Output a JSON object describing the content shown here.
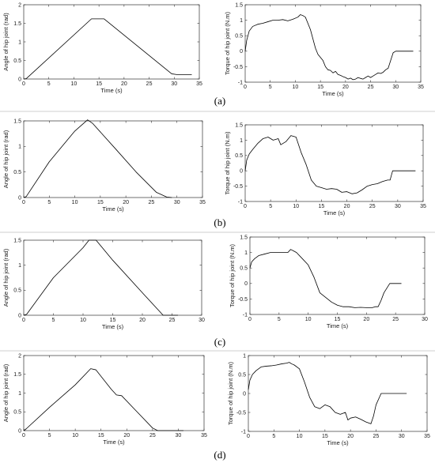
{
  "panels": [
    {
      "label": "(a)",
      "charts": [
        {
          "type": "line",
          "xlabel": "Time (s)",
          "ylabel": "Angle of hip joint (rad)",
          "xlim": [
            0,
            35
          ],
          "ylim": [
            0,
            2
          ],
          "xticks": [
            0,
            5,
            10,
            15,
            20,
            25,
            30,
            35
          ],
          "yticks": [
            0,
            0.5,
            1,
            1.5,
            2
          ],
          "ytick_labels": [
            "0",
            "0.5",
            "1",
            "1.5",
            "2"
          ],
          "series": [
            {
              "x": [
                0,
                0.5,
                13.5,
                16,
                29.5,
                30.5,
                33.5
              ],
              "y": [
                0,
                0.01,
                1.62,
                1.62,
                0.14,
                0.12,
                0.12
              ]
            }
          ]
        },
        {
          "type": "line",
          "xlabel": "Time (s)",
          "ylabel": "Torque of hip joint (N.m)",
          "xlim": [
            0,
            35
          ],
          "ylim": [
            -1,
            1.5
          ],
          "xticks": [
            0,
            5,
            10,
            15,
            20,
            25,
            30,
            35
          ],
          "yticks": [
            -1,
            -0.5,
            0,
            0.5,
            1,
            1.5
          ],
          "ytick_labels": [
            "-1",
            "-0.5",
            "0",
            "0.5",
            "1",
            "1.5"
          ],
          "series": [
            {
              "x": [
                0,
                0.3,
                0.8,
                1.5,
                2.5,
                3.5,
                4.5,
                5.5,
                6.5,
                7.5,
                8.5,
                9.5,
                10.5,
                11,
                11.5,
                12,
                12.5,
                13,
                13.5,
                14,
                14.5,
                15,
                15.5,
                16,
                16.5,
                17,
                17.5,
                18,
                18.5,
                19,
                19.5,
                20,
                20.5,
                21,
                21.5,
                22,
                22.5,
                23,
                23.5,
                24,
                24.5,
                25,
                25.5,
                26,
                26.5,
                27,
                27.5,
                28,
                28.5,
                29,
                29.5,
                30,
                33.5
              ],
              "y": [
                0,
                0.35,
                0.65,
                0.8,
                0.87,
                0.9,
                0.95,
                1.0,
                1.0,
                1.02,
                0.98,
                1.03,
                1.1,
                1.18,
                1.15,
                1.1,
                0.9,
                0.7,
                0.4,
                0.1,
                -0.1,
                -0.2,
                -0.3,
                -0.5,
                -0.6,
                -0.62,
                -0.7,
                -0.65,
                -0.75,
                -0.78,
                -0.82,
                -0.85,
                -0.9,
                -0.87,
                -0.92,
                -0.9,
                -0.85,
                -0.88,
                -0.9,
                -0.85,
                -0.8,
                -0.85,
                -0.8,
                -0.75,
                -0.7,
                -0.72,
                -0.68,
                -0.6,
                -0.55,
                -0.3,
                -0.05,
                0,
                0
              ]
            }
          ]
        }
      ]
    },
    {
      "label": "(b)",
      "charts": [
        {
          "type": "line",
          "xlabel": "Time (s)",
          "ylabel": "Angle of hip joint (rad)",
          "xlim": [
            0,
            35
          ],
          "ylim": [
            0,
            1.5
          ],
          "xticks": [
            0,
            5,
            10,
            15,
            20,
            25,
            30,
            35
          ],
          "yticks": [
            0,
            0.5,
            1,
            1.5
          ],
          "ytick_labels": [
            "0",
            "0.5",
            "1",
            "1.5"
          ],
          "series": [
            {
              "x": [
                0,
                0.5,
                5,
                10,
                12.5,
                13.5,
                18,
                22,
                26,
                28,
                29
              ],
              "y": [
                0,
                0.02,
                0.7,
                1.3,
                1.52,
                1.45,
                0.95,
                0.5,
                0.1,
                0.01,
                0
              ]
            }
          ]
        },
        {
          "type": "line",
          "xlabel": "Time (s)",
          "ylabel": "Torque of hip joint (N.m)",
          "xlim": [
            0,
            35
          ],
          "ylim": [
            -1,
            1.5
          ],
          "xticks": [
            0,
            5,
            10,
            15,
            20,
            25,
            30,
            35
          ],
          "yticks": [
            -1,
            -0.5,
            0,
            0.5,
            1,
            1.5
          ],
          "ytick_labels": [
            "-1",
            "-0.5",
            "0",
            "0.5",
            "1",
            "1.5"
          ],
          "series": [
            {
              "x": [
                0,
                0.3,
                0.8,
                1.5,
                2.5,
                3.5,
                4.5,
                5.5,
                6.5,
                7,
                8,
                9,
                10,
                11,
                12,
                13,
                14,
                15,
                16,
                17,
                18,
                19,
                20,
                21,
                22,
                23,
                24,
                25,
                26,
                27,
                28,
                28.5,
                29,
                33.5
              ],
              "y": [
                0,
                0.35,
                0.55,
                0.7,
                0.9,
                1.05,
                1.1,
                1.0,
                1.05,
                0.85,
                0.95,
                1.15,
                1.1,
                0.6,
                0.2,
                -0.3,
                -0.5,
                -0.55,
                -0.6,
                -0.58,
                -0.6,
                -0.7,
                -0.68,
                -0.75,
                -0.72,
                -0.62,
                -0.5,
                -0.45,
                -0.42,
                -0.35,
                -0.3,
                -0.3,
                0,
                0
              ]
            }
          ]
        }
      ]
    },
    {
      "label": "(c)",
      "charts": [
        {
          "type": "line",
          "xlabel": "Time (s)",
          "ylabel": "Angle of hip joint (rad)",
          "xlim": [
            0,
            30
          ],
          "ylim": [
            0,
            1.5
          ],
          "xticks": [
            0,
            5,
            10,
            15,
            20,
            25,
            30
          ],
          "yticks": [
            0,
            0.5,
            1,
            1.5
          ],
          "ytick_labels": [
            "0",
            "0.5",
            "1",
            "1.5"
          ],
          "series": [
            {
              "x": [
                0,
                0.5,
                5,
                10,
                11,
                12.2,
                15,
                20,
                23.5,
                24,
                26
              ],
              "y": [
                0,
                0.02,
                0.75,
                1.35,
                1.5,
                1.5,
                1.1,
                0.45,
                0,
                0,
                0
              ]
            }
          ]
        },
        {
          "type": "line",
          "xlabel": "Time (s)",
          "ylabel": "Torque of hip joint (N.m)",
          "xlim": [
            0,
            30
          ],
          "ylim": [
            -1,
            1.5
          ],
          "xticks": [
            0,
            5,
            10,
            15,
            20,
            25,
            30
          ],
          "yticks": [
            -1,
            -0.5,
            0,
            0.5,
            1,
            1.5
          ],
          "ytick_labels": [
            "-1",
            "-0.5",
            "0",
            "0.5",
            "1",
            "1.5"
          ],
          "series": [
            {
              "x": [
                0,
                0.3,
                0.8,
                1.5,
                2.5,
                3.5,
                4.5,
                5.5,
                6.5,
                7,
                7.5,
                8,
                9,
                10,
                11,
                12,
                13,
                14,
                15,
                16,
                17,
                18,
                19,
                20,
                21,
                21.5,
                22,
                22.5,
                23,
                24,
                26
              ],
              "y": [
                0.5,
                0.7,
                0.8,
                0.9,
                0.95,
                1.0,
                1.0,
                1.0,
                1.0,
                1.1,
                1.05,
                1.0,
                0.8,
                0.6,
                0.2,
                -0.3,
                -0.45,
                -0.6,
                -0.7,
                -0.75,
                -0.75,
                -0.78,
                -0.77,
                -0.78,
                -0.78,
                -0.75,
                -0.75,
                -0.55,
                -0.3,
                0,
                0
              ]
            }
          ]
        }
      ]
    },
    {
      "label": "(d)",
      "charts": [
        {
          "type": "line",
          "xlabel": "Time (s)",
          "ylabel": "Angle of hip joint (rad)",
          "xlim": [
            0,
            35
          ],
          "ylim": [
            0,
            2
          ],
          "xticks": [
            0,
            5,
            10,
            15,
            20,
            25,
            30,
            35
          ],
          "yticks": [
            0,
            0.5,
            1,
            1.5,
            2
          ],
          "ytick_labels": [
            "0",
            "0.5",
            "1",
            "1.5",
            "2"
          ],
          "series": [
            {
              "x": [
                0,
                0.5,
                5,
                10,
                13,
                14,
                17,
                18,
                19,
                22,
                25,
                26,
                31
              ],
              "y": [
                0,
                0.05,
                0.62,
                1.22,
                1.65,
                1.62,
                1.1,
                0.95,
                0.93,
                0.5,
                0.07,
                0,
                0
              ]
            }
          ]
        },
        {
          "type": "line",
          "xlabel": "Time (s)",
          "ylabel": "Torque of hip joint (N.m)",
          "xlim": [
            0,
            35
          ],
          "ylim": [
            -1,
            1
          ],
          "xticks": [
            0,
            5,
            10,
            15,
            20,
            25,
            30,
            35
          ],
          "yticks": [
            -1,
            -0.5,
            0,
            0.5,
            1
          ],
          "ytick_labels": [
            "-1",
            "-0.5",
            "0",
            "0.5",
            "1"
          ],
          "series": [
            {
              "x": [
                0,
                0.3,
                0.8,
                1.5,
                2.5,
                3.5,
                4.5,
                5.5,
                6.5,
                7.5,
                8,
                8.5,
                9,
                10,
                11,
                12,
                13,
                14,
                15,
                16,
                17,
                18,
                19,
                19.5,
                20,
                21,
                22,
                23,
                24,
                24.5,
                25,
                26,
                31
              ],
              "y": [
                0.1,
                0.35,
                0.5,
                0.6,
                0.7,
                0.72,
                0.73,
                0.75,
                0.78,
                0.8,
                0.82,
                0.78,
                0.75,
                0.65,
                0.3,
                -0.1,
                -0.35,
                -0.4,
                -0.3,
                -0.35,
                -0.5,
                -0.55,
                -0.5,
                -0.7,
                -0.65,
                -0.62,
                -0.68,
                -0.75,
                -0.8,
                -0.6,
                -0.3,
                0,
                0
              ]
            }
          ]
        }
      ]
    }
  ]
}
